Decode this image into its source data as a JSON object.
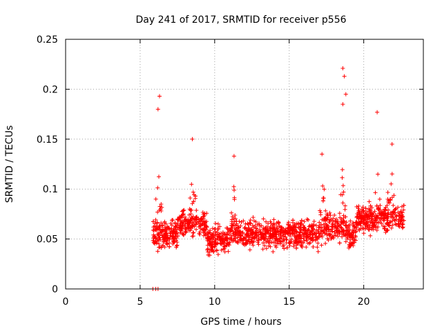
{
  "chart_data": {
    "type": "scatter",
    "title": "Day 241 of 2017, SRMTID for receiver p556",
    "xlabel": "GPS time / hours",
    "ylabel": "SRMTID / TECUs",
    "xlim": [
      0,
      24
    ],
    "ylim": [
      0,
      0.25
    ],
    "xticks": [
      0,
      5,
      10,
      15,
      20
    ],
    "xtick_labels": [
      "0",
      "5",
      "10",
      "15",
      "20"
    ],
    "yticks": [
      0,
      0.05,
      0.1,
      0.15,
      0.2,
      0.25
    ],
    "ytick_labels": [
      "0",
      "0.05",
      "0.1",
      "0.15",
      "0.2",
      "0.25"
    ],
    "grid": true,
    "marker": "+",
    "marker_color": "#ff0000",
    "series": [
      {
        "name": "SRMTID",
        "x_range": [
          5.8,
          22.7
        ],
        "typical_range": [
          0.02,
          0.1
        ],
        "peaks": [
          {
            "x": 6.3,
            "y": 0.193
          },
          {
            "x": 6.2,
            "y": 0.18
          },
          {
            "x": 8.5,
            "y": 0.15
          },
          {
            "x": 11.3,
            "y": 0.133
          },
          {
            "x": 17.2,
            "y": 0.135
          },
          {
            "x": 18.6,
            "y": 0.221
          },
          {
            "x": 18.7,
            "y": 0.213
          },
          {
            "x": 18.8,
            "y": 0.195
          },
          {
            "x": 18.6,
            "y": 0.185
          },
          {
            "x": 20.9,
            "y": 0.177
          },
          {
            "x": 21.9,
            "y": 0.145
          }
        ],
        "zero_values_x": [
          5.85,
          6.05,
          6.2
        ]
      }
    ]
  }
}
